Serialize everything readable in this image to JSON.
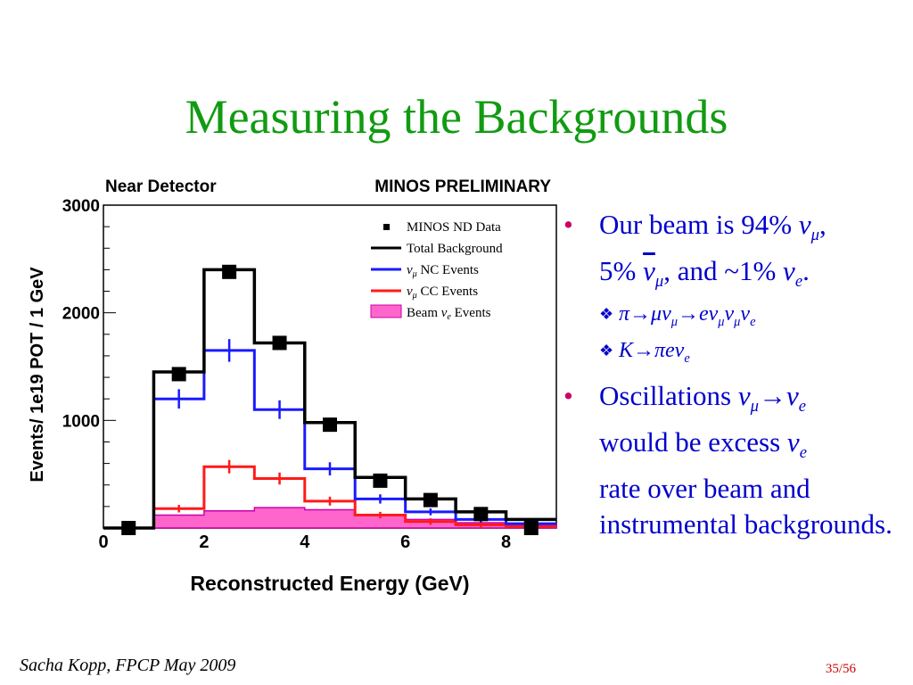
{
  "slide": {
    "title": "Measuring the Backgrounds",
    "footer_author": "Sacha Kopp, FPCP May 2009",
    "page_number": "35/56"
  },
  "bullets": {
    "b1_text1": "Our beam is 94%",
    "b1_nu1": "ν",
    "b1_sub1": "μ",
    "b1_text2": ",",
    "b1_text3": "5%",
    "b1_nubar": "ν",
    "b1_sub2": "μ",
    "b1_text4": ", and ~1%",
    "b1_nu3": "ν",
    "b1_sub3": "e",
    "b1_text5": ".",
    "sub1": "π→μν",
    "sub1_s1": "μ",
    "sub1_b": "→eν",
    "sub1_s2": "μ",
    "sub1_c": "ν",
    "sub1_s3": "μ",
    "sub1_d": "ν",
    "sub1_s4": "e",
    "sub2": "K→πeν",
    "sub2_s1": "e",
    "b2_text1": "Oscillations",
    "b2_nu1": "ν",
    "b2_sub1": "μ",
    "b2_arrow": "→ν",
    "b2_sub2": "e",
    "b2_text2": "would be excess",
    "b2_nu3": "ν",
    "b2_sub3": "e",
    "b2_text3": "rate over beam and instrumental backgrounds."
  },
  "chart_data": {
    "type": "histogram",
    "title": "Near Detector",
    "subtitle": "MINOS PRELIMINARY",
    "xlabel": "Reconstructed Energy (GeV)",
    "ylabel": "Events/ 1e19 POT / 1 GeV",
    "xlim": [
      0,
      9
    ],
    "ylim": [
      0,
      3000
    ],
    "x_ticks": [
      0,
      2,
      4,
      6,
      8
    ],
    "y_ticks": [
      1000,
      2000,
      3000
    ],
    "bin_edges": [
      0,
      1,
      2,
      3,
      4,
      5,
      6,
      7,
      8,
      9
    ],
    "grid": false,
    "legend_position": "top-right",
    "colors": {
      "data": "#000000",
      "total": "#000000",
      "nc": "#1a1aff",
      "cc": "#ff1a1a",
      "beam_fill": "#ff66cc",
      "beam_edge": "#cc00aa"
    },
    "legend": [
      {
        "label": "MINOS ND Data",
        "style": "marker"
      },
      {
        "label": "Total Background",
        "style": "line"
      },
      {
        "label_sym": "ν",
        "label_sub": "μ",
        "label_rest": " NC Events",
        "style": "line"
      },
      {
        "label_sym": "ν",
        "label_sub": "μ",
        "label_rest": " CC Events",
        "style": "line"
      },
      {
        "label_prefix": "Beam ",
        "label_sym": "ν",
        "label_sub": "e",
        "label_rest": " Events",
        "style": "fill"
      }
    ],
    "series": [
      {
        "key": "total",
        "values": [
          0,
          1450,
          2400,
          1720,
          980,
          470,
          270,
          150,
          80
        ]
      },
      {
        "key": "nc",
        "values": [
          0,
          1200,
          1650,
          1100,
          550,
          270,
          150,
          80,
          40
        ]
      },
      {
        "key": "cc",
        "values": [
          0,
          180,
          570,
          460,
          250,
          120,
          60,
          30,
          15
        ]
      },
      {
        "key": "beam",
        "values": [
          0,
          120,
          160,
          190,
          170,
          120,
          80,
          50,
          30
        ]
      },
      {
        "key": "data",
        "values": [
          0,
          1430,
          2380,
          1720,
          960,
          440,
          260,
          130,
          0
        ]
      }
    ]
  }
}
